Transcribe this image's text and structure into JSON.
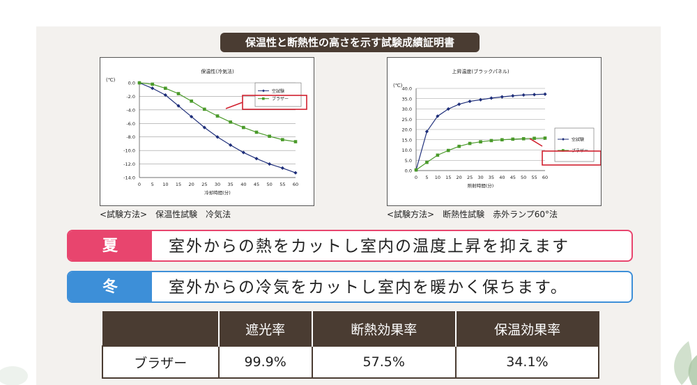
{
  "title": "保温性と断熱性の高さを示す試験成績証明書",
  "chart_data": [
    {
      "type": "line",
      "title": "保温性(冷気法)",
      "ylabel": "(℃)",
      "xlabel": "冷却時間(分)",
      "x": [
        0,
        5,
        10,
        15,
        20,
        25,
        30,
        35,
        40,
        45,
        50,
        55,
        60
      ],
      "xticks": [
        "0",
        "5",
        "10",
        "15",
        "20",
        "25",
        "30",
        "35",
        "40",
        "45",
        "50",
        "55",
        "60"
      ],
      "yticks": [
        "0.0",
        "-2.0",
        "-4.0",
        "-6.0",
        "-8.0",
        "-10.0",
        "-12.0",
        "-14.0"
      ],
      "ylim": [
        -14,
        0
      ],
      "grid": true,
      "legend_position": "top-right",
      "series": [
        {
          "name": "空試験",
          "color": "#1f2f7a",
          "marker": "diamond",
          "values": [
            0,
            -0.8,
            -1.8,
            -3.4,
            -5.0,
            -6.6,
            -8.0,
            -9.2,
            -10.3,
            -11.2,
            -12.0,
            -12.6,
            -13.3
          ]
        },
        {
          "name": "ブラザー",
          "color": "#4a9a2a",
          "marker": "square",
          "values": [
            0,
            -0.2,
            -0.8,
            -1.6,
            -2.7,
            -3.9,
            -4.9,
            -5.8,
            -6.6,
            -7.3,
            -7.9,
            -8.4,
            -8.7
          ]
        }
      ]
    },
    {
      "type": "line",
      "title": "上昇温度(ブラックパネル)",
      "ylabel": "(℃)",
      "xlabel": "照射時間(分)",
      "x": [
        0,
        5,
        10,
        15,
        20,
        25,
        30,
        35,
        40,
        45,
        50,
        55,
        60
      ],
      "xticks": [
        "0",
        "5",
        "10",
        "15",
        "20",
        "25",
        "30",
        "35",
        "40",
        "45",
        "50",
        "55",
        "60"
      ],
      "yticks": [
        "40.0",
        "35.0",
        "30.0",
        "25.0",
        "20.0",
        "15.0",
        "10.0",
        "5.0",
        "0.0"
      ],
      "ylim": [
        0,
        40
      ],
      "grid": true,
      "legend_position": "right",
      "series": [
        {
          "name": "空試験",
          "color": "#1f2f7a",
          "marker": "diamond",
          "values": [
            0.3,
            19,
            26.5,
            30,
            32.3,
            33.7,
            34.5,
            35.3,
            35.9,
            36.4,
            36.8,
            37.0,
            37.2
          ]
        },
        {
          "name": "ブラザー",
          "color": "#4a9a2a",
          "marker": "square",
          "values": [
            0.3,
            4,
            7.5,
            9.8,
            11.8,
            13.2,
            14.0,
            14.6,
            15.0,
            15.3,
            15.5,
            15.7,
            15.8
          ]
        }
      ]
    }
  ],
  "captions": {
    "left": "<試験方法>　保温性試験　冷気法",
    "right": "<試験方法>　断熱性試験　赤外ランプ60°法"
  },
  "seasons": [
    {
      "tag": "夏",
      "text": "室外からの熱をカットし室内の温度上昇を抑えます",
      "color": "#e8456e"
    },
    {
      "tag": "冬",
      "text": "室外からの冷気をカットし室内を暖かく保ちます。",
      "color": "#3d8fd8"
    }
  ],
  "table": {
    "headers": [
      "",
      "遮光率",
      "断熱効果率",
      "保温効果率"
    ],
    "rows": [
      [
        "ブラザー",
        "99.9%",
        "57.5%",
        "34.1%"
      ]
    ]
  },
  "colors": {
    "dark_brown": "#4a3c32",
    "highlight_red": "#d0202e"
  }
}
